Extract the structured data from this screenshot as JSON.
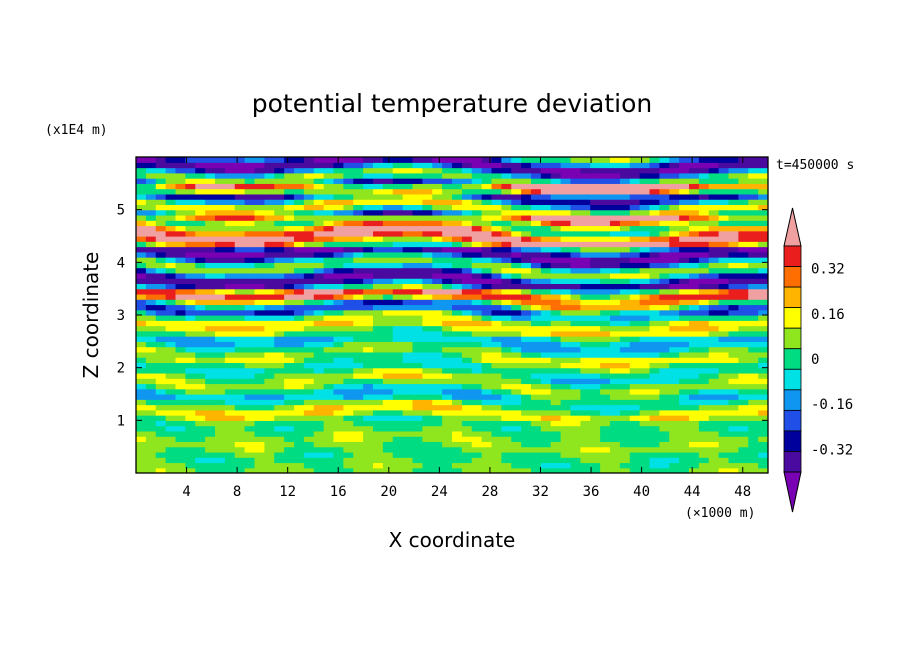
{
  "chart_data": {
    "type": "heatmap",
    "title": "potential temperature deviation",
    "xlabel": "X coordinate",
    "ylabel": "Z coordinate",
    "x_unit": "(×1000 m)",
    "y_unit": "(x1E4 m)",
    "time_label": "t=450000 s",
    "xlim": [
      0,
      50
    ],
    "ylim": [
      0,
      6
    ],
    "xticks": [
      "4",
      "8",
      "12",
      "16",
      "20",
      "24",
      "28",
      "32",
      "36",
      "40",
      "44",
      "48"
    ],
    "yticks": [
      "1",
      "2",
      "3",
      "4",
      "5"
    ],
    "colorbar": {
      "tick_labels": [
        "0.32",
        "0.16",
        "0",
        "-0.16",
        "-0.32"
      ],
      "tick_values": [
        0.32,
        0.16,
        0,
        -0.16,
        -0.32
      ],
      "levels": [
        -0.48,
        -0.4,
        -0.32,
        -0.24,
        -0.16,
        -0.08,
        0,
        0.08,
        0.16,
        0.24,
        0.32,
        0.4,
        0.48
      ],
      "colors": [
        "#7a00b4",
        "#4a0aa0",
        "#00009c",
        "#1f4fe6",
        "#0f96f0",
        "#00e1e6",
        "#00dc82",
        "#90e61e",
        "#ffff00",
        "#ffb400",
        "#ff6e00",
        "#eb1e1e",
        "#f0a0a0"
      ]
    },
    "field_description_rows": [
      {
        "z": 0.25,
        "v": -0.01
      },
      {
        "z": 0.6,
        "v": 0.02
      },
      {
        "z": 0.9,
        "v": 0.0
      },
      {
        "z": 1.2,
        "v": 0.05
      },
      {
        "z": 1.6,
        "v": -0.1
      },
      {
        "z": 2.0,
        "v": 0.03
      },
      {
        "z": 2.4,
        "v": -0.12
      },
      {
        "z": 2.8,
        "v": 0.08
      },
      {
        "z": 3.1,
        "v": -0.05
      },
      {
        "z": 3.4,
        "v": 0.22
      },
      {
        "z": 3.7,
        "v": -0.36
      },
      {
        "z": 4.1,
        "v": -0.4
      },
      {
        "z": 4.5,
        "v": 0.3
      },
      {
        "z": 4.8,
        "v": 0.45
      },
      {
        "z": 5.1,
        "v": -0.2
      },
      {
        "z": 5.4,
        "v": 0.4
      },
      {
        "z": 5.7,
        "v": -0.38
      }
    ]
  }
}
